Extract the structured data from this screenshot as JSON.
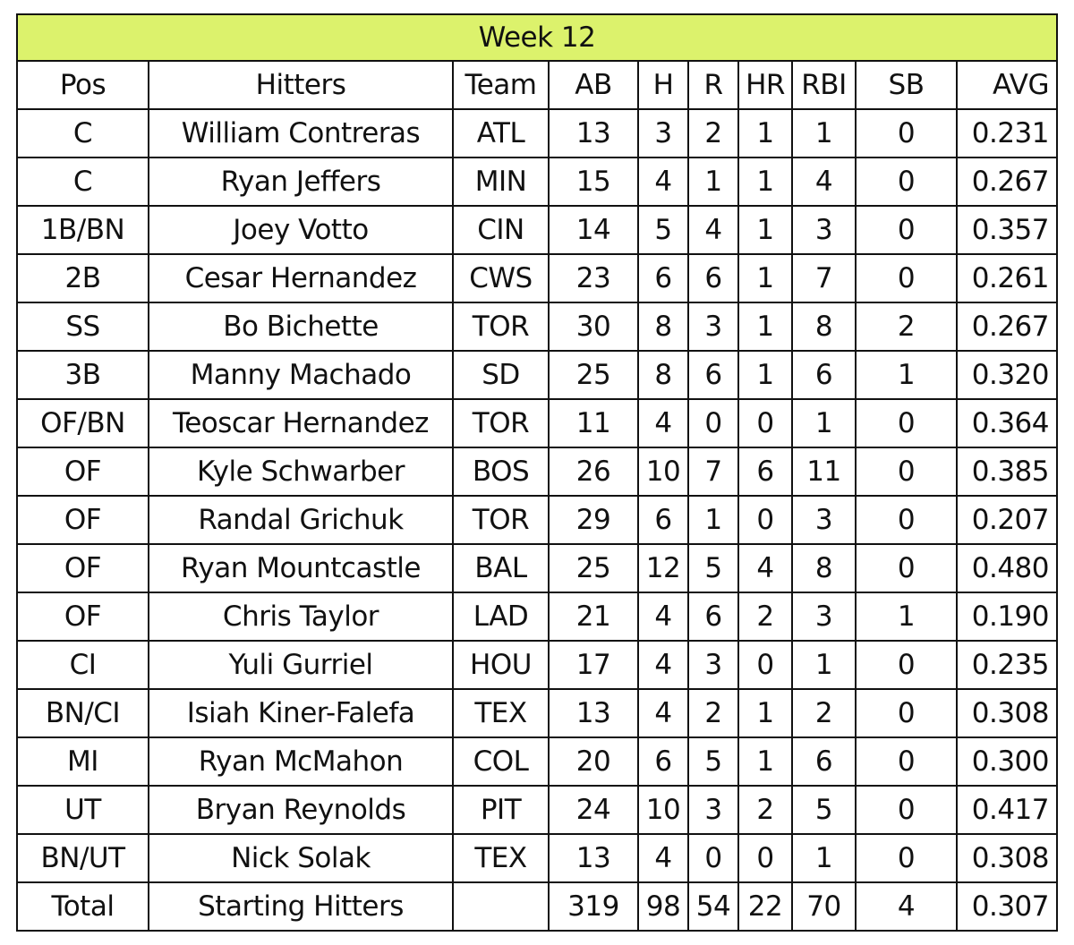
{
  "table": {
    "title": "Week 12",
    "header": [
      "Pos",
      "Hitters",
      "Team",
      "AB",
      "H",
      "R",
      "HR",
      "RBI",
      "SB",
      "AVG"
    ],
    "rows": [
      [
        "C",
        "William Contreras",
        "ATL",
        "13",
        "3",
        "2",
        "1",
        "1",
        "0",
        "0.231"
      ],
      [
        "C",
        "Ryan Jeffers",
        "MIN",
        "15",
        "4",
        "1",
        "1",
        "4",
        "0",
        "0.267"
      ],
      [
        "1B/BN",
        "Joey Votto",
        "CIN",
        "14",
        "5",
        "4",
        "1",
        "3",
        "0",
        "0.357"
      ],
      [
        "2B",
        "Cesar Hernandez",
        "CWS",
        "23",
        "6",
        "6",
        "1",
        "7",
        "0",
        "0.261"
      ],
      [
        "SS",
        "Bo Bichette",
        "TOR",
        "30",
        "8",
        "3",
        "1",
        "8",
        "2",
        "0.267"
      ],
      [
        "3B",
        "Manny Machado",
        "SD",
        "25",
        "8",
        "6",
        "1",
        "6",
        "1",
        "0.320"
      ],
      [
        "OF/BN",
        "Teoscar Hernandez",
        "TOR",
        "11",
        "4",
        "0",
        "0",
        "1",
        "0",
        "0.364"
      ],
      [
        "OF",
        "Kyle Schwarber",
        "BOS",
        "26",
        "10",
        "7",
        "6",
        "11",
        "0",
        "0.385"
      ],
      [
        "OF",
        "Randal Grichuk",
        "TOR",
        "29",
        "6",
        "1",
        "0",
        "3",
        "0",
        "0.207"
      ],
      [
        "OF",
        "Ryan Mountcastle",
        "BAL",
        "25",
        "12",
        "5",
        "4",
        "8",
        "0",
        "0.480"
      ],
      [
        "OF",
        "Chris Taylor",
        "LAD",
        "21",
        "4",
        "6",
        "2",
        "3",
        "1",
        "0.190"
      ],
      [
        "CI",
        "Yuli Gurriel",
        "HOU",
        "17",
        "4",
        "3",
        "0",
        "1",
        "0",
        "0.235"
      ],
      [
        "BN/CI",
        "Isiah Kiner-Falefa",
        "TEX",
        "13",
        "4",
        "2",
        "1",
        "2",
        "0",
        "0.308"
      ],
      [
        "MI",
        "Ryan McMahon",
        "COL",
        "20",
        "6",
        "5",
        "1",
        "6",
        "0",
        "0.300"
      ],
      [
        "UT",
        "Bryan Reynolds",
        "PIT",
        "24",
        "10",
        "3",
        "2",
        "5",
        "0",
        "0.417"
      ],
      [
        "BN/UT",
        "Nick Solak",
        "TEX",
        "13",
        "4",
        "0",
        "0",
        "1",
        "0",
        "0.308"
      ],
      [
        "Total",
        "Starting Hitters",
        null,
        "319",
        "98",
        "54",
        "22",
        "70",
        "4",
        "0.307"
      ]
    ]
  }
}
